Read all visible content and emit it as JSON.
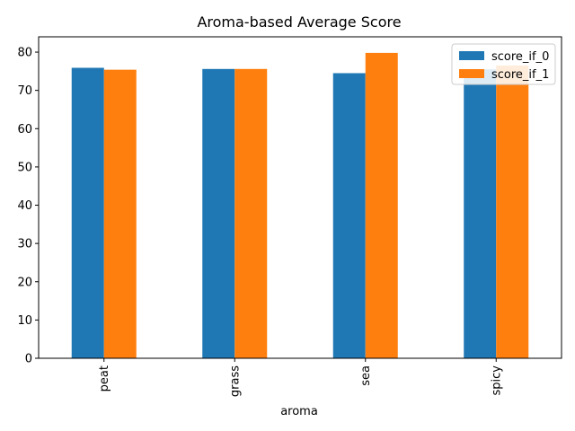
{
  "chart_data": {
    "type": "bar",
    "title": "Aroma-based Average Score",
    "xlabel": "aroma",
    "ylabel": "",
    "categories": [
      "peat",
      "grass",
      "sea",
      "spicy"
    ],
    "series": [
      {
        "name": "score_if_0",
        "color": "#1f77b4",
        "values": [
          75.9,
          75.6,
          74.5,
          75.5
        ]
      },
      {
        "name": "score_if_1",
        "color": "#ff7f0e",
        "values": [
          75.4,
          75.6,
          79.8,
          76.5
        ]
      }
    ],
    "ylim": [
      0,
      84
    ],
    "yticks": [
      0,
      10,
      20,
      30,
      40,
      50,
      60,
      70,
      80
    ],
    "legend_position": "top-right",
    "grid": false
  }
}
